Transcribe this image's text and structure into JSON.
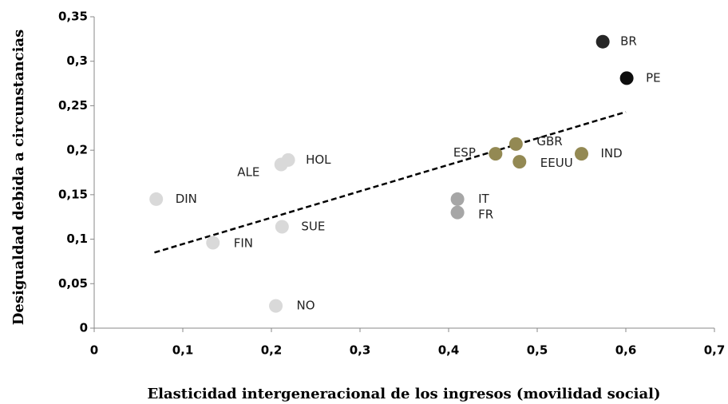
{
  "chart_data": {
    "type": "scatter",
    "x_label": "Elasticidad intergeneracional de los ingresos (movilidad social)",
    "y_label": "Desigualdad debida a circunstancias",
    "point_labels": [
      "BR",
      "PE",
      "ESP",
      "GBR",
      "EEUU",
      "IND",
      "IT",
      "FR",
      "HOL",
      "ALE",
      "DIN",
      "SUE",
      "FIN",
      "NO"
    ],
    "x": [
      0.574,
      0.601,
      0.453,
      0.476,
      0.48,
      0.55,
      0.41,
      0.41,
      0.219,
      0.211,
      0.07,
      0.212,
      0.134,
      0.205
    ],
    "y": [
      0.322,
      0.281,
      0.196,
      0.207,
      0.187,
      0.196,
      0.145,
      0.13,
      0.189,
      0.184,
      0.145,
      0.114,
      0.096,
      0.025
    ],
    "colors": [
      "#262626",
      "#0d0d0d",
      "#938953",
      "#938953",
      "#938953",
      "#938953",
      "#a6a6a6",
      "#a6a6a6",
      "#d9d9d9",
      "#d9d9d9",
      "#d9d9d9",
      "#d9d9d9",
      "#d9d9d9",
      "#d9d9d9"
    ],
    "trendline": {
      "x": [
        0.068,
        0.6
      ],
      "y": [
        0.085,
        0.243
      ]
    },
    "xlim": [
      0,
      0.7
    ],
    "xticks": [
      0,
      {
        "value": 0.1,
        "label": "0,1"
      },
      {
        "value": 0.2,
        "label": "0,2"
      },
      {
        "value": 0.3,
        "label": "0,3"
      },
      {
        "value": 0.4,
        "label": "0,4"
      },
      {
        "value": 0.5,
        "label": "0,5"
      },
      {
        "value": 0.6,
        "label": "0,6"
      },
      {
        "value": 0.7,
        "label": "0,7"
      }
    ],
    "ylim": [
      0,
      0.35
    ],
    "yticks": [
      0,
      {
        "value": 0.05,
        "label": "0,05"
      },
      {
        "value": 0.1,
        "label": "0,1"
      },
      {
        "value": 0.15,
        "label": "0,15"
      },
      {
        "value": 0.2,
        "label": "0,2"
      },
      {
        "value": 0.25,
        "label": "0,25"
      },
      {
        "value": 0.3,
        "label": "0,3"
      },
      {
        "value": 0.35,
        "label": "0,35"
      }
    ]
  }
}
